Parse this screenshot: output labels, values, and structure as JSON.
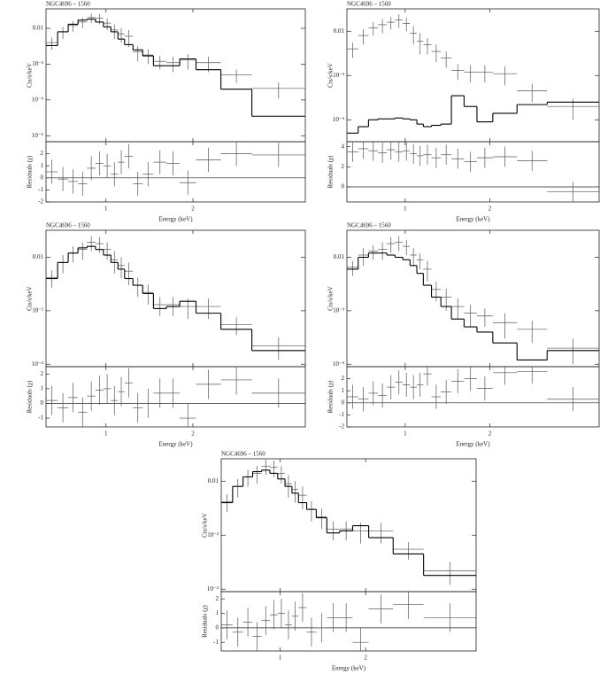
{
  "chart_data": [
    {
      "type": "spectrum",
      "title": "NGC4696 – 1560",
      "xlabel": "Energy (keV)",
      "ylabel": "Cts/s/keV",
      "residual_label": "Residuals (χ)",
      "log_x": true,
      "log_y": true,
      "xlim": [
        0.62,
        4.9
      ],
      "xticks": [
        1,
        2
      ],
      "ylim": [
        6.8e-06,
        0.035
      ],
      "yticks": [
        0.01,
        {
          "value": 0.001,
          "label": "10⁻³"
        },
        {
          "value": 0.0001,
          "label": "10⁻⁴"
        },
        {
          "value": 1e-05,
          "label": "10⁻⁵"
        }
      ],
      "rlim": [
        -2,
        3
      ],
      "rticks": [
        -2,
        -1,
        0,
        1,
        2
      ],
      "residual_error": 1,
      "bins": [
        0.62,
        0.68,
        0.74,
        0.8,
        0.86,
        0.92,
        0.98,
        1.04,
        1.1,
        1.16,
        1.24,
        1.34,
        1.46,
        1.62,
        1.8,
        2.05,
        2.5,
        3.2,
        4.9
      ],
      "counts": [
        0.004,
        0.008,
        0.012,
        0.015,
        0.02,
        0.019,
        0.014,
        0.009,
        0.007,
        0.006,
        0.0022,
        0.0018,
        0.0012,
        0.0011,
        0.0013,
        0.0011,
        0.0005,
        0.00021
      ],
      "count_errors": [
        0.0015,
        0.003,
        0.004,
        0.005,
        0.006,
        0.006,
        0.005,
        0.004,
        0.003,
        0.003,
        0.001,
        0.0008,
        0.0005,
        0.0005,
        0.0006,
        0.0005,
        0.0002,
        0.0001
      ],
      "model": [
        0.0033,
        0.008,
        0.013,
        0.017,
        0.018,
        0.015,
        0.011,
        0.008,
        0.005,
        0.0035,
        0.0025,
        0.0017,
        0.0009,
        0.0009,
        0.0014,
        0.0007,
        0.0002,
        3.5e-05
      ],
      "residuals": [
        0.5,
        -0.1,
        -0.3,
        -0.5,
        0.8,
        1.2,
        1.0,
        0.3,
        1.3,
        1.8,
        -0.5,
        0.3,
        1.3,
        1.2,
        -0.4,
        1.5,
        2.0,
        1.9
      ]
    },
    {
      "type": "spectrum",
      "title": "NGC4696 – 1560",
      "xlabel": "Energy (keV)",
      "ylabel": "Cts/s/keV",
      "residual_label": "Residuals (χ)",
      "log_x": true,
      "log_y": true,
      "xlim": [
        0.62,
        4.9
      ],
      "xticks": [
        1,
        2
      ],
      "ylim": [
        3.2e-05,
        0.032
      ],
      "yticks": [
        0.01,
        {
          "value": 0.001,
          "label": "10⁻³"
        },
        {
          "value": 0.0001,
          "label": "10⁻⁴"
        }
      ],
      "rlim": [
        -1.5,
        4.5
      ],
      "rticks": [
        0,
        2,
        4
      ],
      "residual_error": 1,
      "bins": [
        0.62,
        0.68,
        0.74,
        0.8,
        0.86,
        0.92,
        0.98,
        1.04,
        1.1,
        1.16,
        1.24,
        1.34,
        1.46,
        1.62,
        1.8,
        2.05,
        2.5,
        3.2,
        4.9
      ],
      "counts": [
        0.004,
        0.008,
        0.012,
        0.014,
        0.016,
        0.018,
        0.015,
        0.009,
        0.006,
        0.005,
        0.0035,
        0.0025,
        0.0013,
        0.0012,
        0.0012,
        0.0011,
        0.00045,
        0.0002
      ],
      "count_errors": [
        0.0015,
        0.003,
        0.004,
        0.005,
        0.005,
        0.006,
        0.005,
        0.004,
        0.003,
        0.002,
        0.0015,
        0.001,
        0.0005,
        0.0005,
        0.0005,
        0.0005,
        0.0002,
        0.0001
      ],
      "model": [
        5e-05,
        7e-05,
        0.0001,
        0.000105,
        0.000105,
        0.00011,
        0.000105,
        0.0001,
        8e-05,
        7e-05,
        7.5e-05,
        8e-05,
        0.00035,
        0.0002,
        9e-05,
        0.00014,
        0.00022,
        0.00025
      ],
      "residuals": [
        3.5,
        3.8,
        3.6,
        3.4,
        3.7,
        3.5,
        3.6,
        3.3,
        3.1,
        3.2,
        2.9,
        3.2,
        2.8,
        2.5,
        2.9,
        3.0,
        2.6,
        -0.5
      ]
    },
    {
      "type": "spectrum",
      "title": "NGC4696 – 1560",
      "xlabel": "Energy (keV)",
      "ylabel": "Cts/s/keV",
      "residual_label": "Residuals (χ)",
      "log_x": true,
      "log_y": true,
      "xlim": [
        0.62,
        4.9
      ],
      "xticks": [
        1,
        2
      ],
      "ylim": [
        9e-05,
        0.032
      ],
      "yticks": [
        0.01,
        {
          "value": 0.001,
          "label": "10⁻³"
        },
        {
          "value": 0.0001,
          "label": "10⁻⁴"
        }
      ],
      "rlim": [
        -1.6,
        2.5
      ],
      "rticks": [
        -1,
        0,
        1,
        2
      ],
      "residual_error": 1,
      "bins": [
        0.62,
        0.68,
        0.74,
        0.8,
        0.86,
        0.92,
        0.98,
        1.04,
        1.1,
        1.16,
        1.24,
        1.34,
        1.46,
        1.62,
        1.8,
        2.05,
        2.5,
        3.2,
        4.9
      ],
      "counts": [
        0.0042,
        0.008,
        0.012,
        0.014,
        0.019,
        0.018,
        0.014,
        0.009,
        0.007,
        0.0055,
        0.003,
        0.0022,
        0.0013,
        0.0013,
        0.0012,
        0.0012,
        0.00055,
        0.00022
      ],
      "count_errors": [
        0.0015,
        0.003,
        0.004,
        0.005,
        0.006,
        0.006,
        0.005,
        0.004,
        0.003,
        0.0025,
        0.0012,
        0.0009,
        0.0005,
        0.0005,
        0.0005,
        0.0005,
        0.0002,
        0.0001
      ],
      "model": [
        0.004,
        0.008,
        0.012,
        0.015,
        0.016,
        0.014,
        0.011,
        0.008,
        0.006,
        0.004,
        0.003,
        0.0021,
        0.0011,
        0.0012,
        0.0015,
        0.0009,
        0.00045,
        0.00018
      ],
      "residuals": [
        0.2,
        -0.3,
        0.4,
        -0.6,
        0.5,
        0.9,
        1.0,
        0.2,
        0.8,
        1.4,
        -0.3,
        0.0,
        0.7,
        0.7,
        -1.0,
        1.3,
        1.6,
        0.7
      ]
    },
    {
      "type": "spectrum",
      "title": "NGC4696 – 1560",
      "xlabel": "Energy (keV)",
      "ylabel": "Cts/s/keV",
      "residual_label": "Residuals (χ)",
      "log_x": true,
      "log_y": true,
      "xlim": [
        0.62,
        4.9
      ],
      "xticks": [
        1,
        2
      ],
      "ylim": [
        9e-05,
        0.032
      ],
      "yticks": [
        0.01,
        {
          "value": 0.001,
          "label": "10⁻³"
        },
        {
          "value": 0.0001,
          "label": "10⁻⁴"
        }
      ],
      "rlim": [
        -2,
        3
      ],
      "rticks": [
        -2,
        -1,
        0,
        1,
        2
      ],
      "residual_error": 1,
      "bins": [
        0.62,
        0.68,
        0.74,
        0.8,
        0.86,
        0.92,
        0.98,
        1.04,
        1.1,
        1.16,
        1.24,
        1.34,
        1.46,
        1.62,
        1.8,
        2.05,
        2.5,
        3.2,
        4.9
      ],
      "counts": [
        0.0065,
        0.011,
        0.013,
        0.014,
        0.018,
        0.019,
        0.016,
        0.011,
        0.009,
        0.006,
        0.0025,
        0.0018,
        0.0012,
        0.0009,
        0.0008,
        0.0006,
        0.00045,
        0.0002
      ],
      "count_errors": [
        0.002,
        0.004,
        0.004,
        0.005,
        0.006,
        0.006,
        0.005,
        0.004,
        0.003,
        0.0025,
        0.001,
        0.0008,
        0.0005,
        0.0004,
        0.0003,
        0.0003,
        0.0002,
        0.0001
      ],
      "model": [
        0.006,
        0.01,
        0.012,
        0.012,
        0.011,
        0.01,
        0.009,
        0.007,
        0.005,
        0.003,
        0.0018,
        0.0012,
        0.0007,
        0.0005,
        0.0004,
        0.00025,
        0.00012,
        0.00018
      ],
      "residuals": [
        0.5,
        0.3,
        0.8,
        0.6,
        1.3,
        1.7,
        1.5,
        1.3,
        1.5,
        2.4,
        0.5,
        0.9,
        1.8,
        2.0,
        1.2,
        2.5,
        2.6,
        0.3
      ]
    },
    {
      "type": "spectrum",
      "title": "NGC4696 – 1560",
      "xlabel": "Energy (keV)",
      "ylabel": "Cts/s/keV",
      "residual_label": "Residuals (χ)",
      "log_x": true,
      "log_y": true,
      "xlim": [
        0.62,
        4.9
      ],
      "xticks": [
        1,
        2
      ],
      "ylim": [
        9e-05,
        0.026
      ],
      "yticks": [
        0.01,
        {
          "value": 0.001,
          "label": "10⁻³"
        },
        {
          "value": 0.0001,
          "label": "10⁻⁴"
        }
      ],
      "rlim": [
        -1.6,
        2.5
      ],
      "rticks": [
        -1,
        0,
        1,
        2
      ],
      "residual_error": 1,
      "bins": [
        0.62,
        0.68,
        0.74,
        0.8,
        0.86,
        0.92,
        0.98,
        1.04,
        1.1,
        1.16,
        1.24,
        1.34,
        1.46,
        1.62,
        1.8,
        2.05,
        2.5,
        3.2,
        4.9
      ],
      "counts": [
        0.0042,
        0.008,
        0.012,
        0.014,
        0.019,
        0.018,
        0.014,
        0.009,
        0.007,
        0.0055,
        0.003,
        0.0022,
        0.0013,
        0.0013,
        0.0012,
        0.0012,
        0.00055,
        0.00022
      ],
      "count_errors": [
        0.0015,
        0.003,
        0.004,
        0.005,
        0.006,
        0.006,
        0.005,
        0.004,
        0.003,
        0.0025,
        0.0012,
        0.0009,
        0.0005,
        0.0005,
        0.0005,
        0.0005,
        0.0002,
        0.0001
      ],
      "model": [
        0.004,
        0.008,
        0.012,
        0.015,
        0.016,
        0.014,
        0.011,
        0.008,
        0.006,
        0.004,
        0.003,
        0.0021,
        0.0011,
        0.0012,
        0.0015,
        0.0009,
        0.00045,
        0.00018
      ],
      "residuals": [
        0.2,
        -0.3,
        0.4,
        -0.6,
        0.5,
        0.9,
        1.0,
        0.2,
        0.8,
        1.4,
        -0.3,
        0.0,
        0.7,
        0.7,
        -1.0,
        1.3,
        1.6,
        0.7
      ]
    }
  ]
}
